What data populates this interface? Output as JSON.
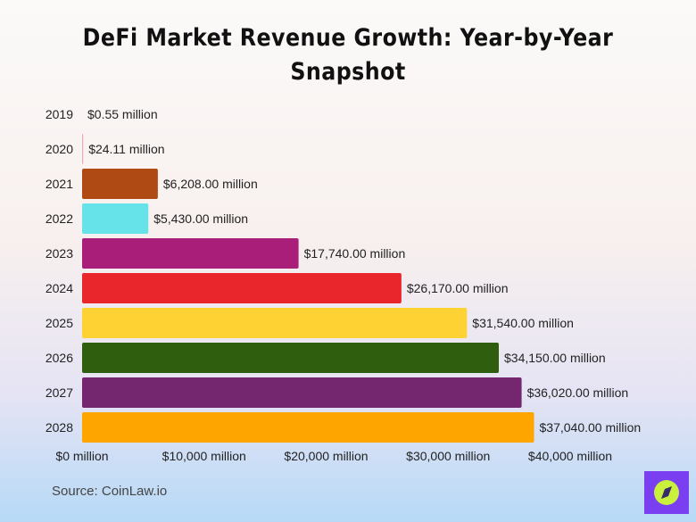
{
  "chart_data": {
    "type": "bar",
    "orientation": "horizontal",
    "title": "DeFi Market Revenue Growth: Year-by-Year Snapshot",
    "categories": [
      "2019",
      "2020",
      "2021",
      "2022",
      "2023",
      "2024",
      "2025",
      "2026",
      "2027",
      "2028"
    ],
    "values": [
      0.55,
      24.11,
      6208,
      5430,
      17740,
      26170,
      31540,
      34150,
      36020,
      37040
    ],
    "data_labels": [
      "$0.55 million",
      "$24.11 million",
      "$6,208.00 million",
      "$5,430.00 million",
      "$17,740.00 million",
      "$26,170.00 million",
      "$31,540.00 million",
      "$34,150.00 million",
      "$36,020.00 million",
      "$37,040.00 million"
    ],
    "colors": [
      "#f4b6c2",
      "#f2a7b5",
      "#b04a15",
      "#66e3e8",
      "#a91e78",
      "#e8262c",
      "#ffd233",
      "#2e5e0e",
      "#74266f",
      "#ffa500"
    ],
    "xlim": [
      0,
      40000
    ],
    "x_ticks": [
      0,
      10000,
      20000,
      30000,
      40000
    ],
    "x_tick_labels": [
      "$0 million",
      "$10,000 million",
      "$20,000 million",
      "$30,000 million",
      "$40,000 million"
    ],
    "xlabel": "",
    "ylabel": "",
    "grid": false,
    "legend": "none"
  },
  "source": "Source: CoinLaw.io",
  "logo": {
    "icon": "compass-icon",
    "bg": "#7b3ff2",
    "fg": "#c8f03c"
  }
}
